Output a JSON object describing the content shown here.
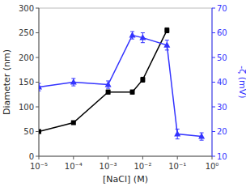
{
  "chart_data": {
    "type": "line",
    "xlabel": "[NaCl] (M)",
    "ylabel": "Diameter (nm)",
    "y2label": "-ζ (mV)",
    "log": "x",
    "grid": false,
    "xlim": [
      1e-05,
      1
    ],
    "xticks": [
      {
        "value": 1e-05,
        "label": "10⁻⁵"
      },
      {
        "value": 0.0001,
        "label": "10⁻⁴"
      },
      {
        "value": 0.001,
        "label": "10⁻³"
      },
      {
        "value": 0.01,
        "label": "10⁻²"
      },
      {
        "value": 0.1,
        "label": "10⁻¹"
      },
      {
        "value": 1,
        "label": "10⁰"
      }
    ],
    "ylim": [
      0,
      300
    ],
    "yticks": [
      0,
      50,
      100,
      150,
      200,
      250,
      300
    ],
    "y2lim": [
      10,
      70
    ],
    "y2ticks": [
      10,
      20,
      30,
      40,
      50,
      60,
      70
    ],
    "series": [
      {
        "x": [
          1e-05,
          0.0001,
          0.001,
          0.005,
          0.01,
          0.05
        ],
        "values": [
          50,
          68,
          130,
          130,
          155,
          255
        ],
        "errors": [
          3,
          3,
          4,
          4,
          5,
          5
        ],
        "color": "#000000",
        "marker": "square",
        "axis": "y"
      },
      {
        "x": [
          1e-05,
          0.0001,
          0.001,
          0.005,
          0.01,
          0.05,
          0.1,
          0.5
        ],
        "values": [
          38,
          40,
          39,
          59,
          58,
          55,
          19,
          18
        ],
        "errors": [
          1.5,
          1.5,
          1.5,
          1.5,
          2,
          2,
          2,
          1.5
        ],
        "color": "#3333ff",
        "marker": "triangle",
        "axis": "y2"
      }
    ]
  }
}
